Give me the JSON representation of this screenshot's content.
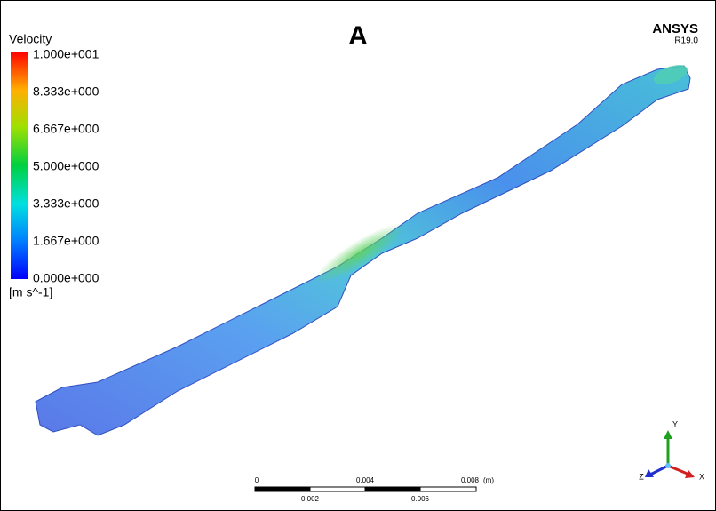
{
  "figure": {
    "label": "A"
  },
  "brand": {
    "name": "ANSYS",
    "version": "R19.0"
  },
  "legend": {
    "title": "Velocity",
    "labels": [
      "1.000e+001",
      "8.333e+000",
      "6.667e+000",
      "5.000e+000",
      "3.333e+000",
      "1.667e+000",
      "0.000e+000"
    ],
    "unit": "[m s^-1]"
  },
  "scale_bar": {
    "top_labels": [
      "0",
      "0.004",
      "0.008"
    ],
    "unit": "(m)",
    "bottom_labels": [
      "0.002",
      "0.006"
    ]
  },
  "triad": {
    "y": "Y",
    "z": "Z",
    "x": "X"
  }
}
